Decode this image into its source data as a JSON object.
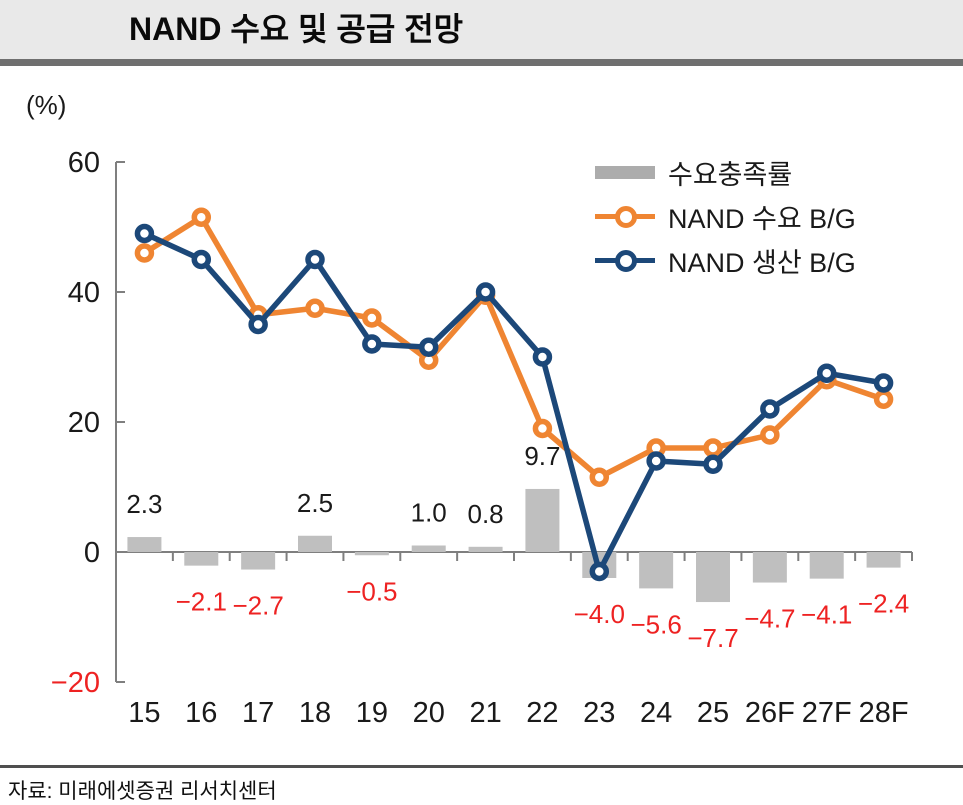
{
  "header": {
    "title": "NAND 수요 및 공급 전망"
  },
  "footer": {
    "source": "자료: 미래에셋증권 리서치센터"
  },
  "chart_data": {
    "type": "combo",
    "unit_label": "(%)",
    "categories": [
      "15",
      "16",
      "17",
      "18",
      "19",
      "20",
      "21",
      "22",
      "23",
      "24",
      "25",
      "26F",
      "27F",
      "28F"
    ],
    "yticks": [
      -20,
      0,
      20,
      40,
      60
    ],
    "ylim": [
      -20,
      60
    ],
    "grid": false,
    "legend_position": "top-right-inside",
    "axis_color": "#7f7f7f",
    "text_color": "#1a1a1a",
    "negative_color": "#ee2222",
    "series": [
      {
        "key": "fulfillment",
        "name": "수요충족률",
        "type": "bar",
        "color": "#bfbfbf",
        "values": [
          2.3,
          -2.1,
          -2.7,
          2.5,
          -0.5,
          1.0,
          0.8,
          9.7,
          -4.0,
          -5.6,
          -7.7,
          -4.7,
          -4.1,
          -2.4
        ],
        "labels": [
          "2.3",
          "−2.1",
          "−2.7",
          "2.5",
          "−0.5",
          "1.0",
          "0.8",
          "9.7",
          "−4.0",
          "−5.6",
          "−7.7",
          "−4.7",
          "−4.1",
          "−2.4"
        ]
      },
      {
        "key": "nand-demand",
        "name": "NAND 수요 B/G",
        "type": "line",
        "color": "#ef8532",
        "values": [
          46,
          51.5,
          36.5,
          37.5,
          36,
          29.5,
          39.5,
          19,
          11.5,
          16,
          16,
          18,
          26.5,
          23.5
        ]
      },
      {
        "key": "nand-production",
        "name": "NAND 생산 B/G",
        "type": "line",
        "color": "#1c4879",
        "values": [
          49,
          45,
          35,
          45,
          32,
          31.5,
          40,
          30,
          -3,
          14,
          13.5,
          22,
          27.5,
          26
        ]
      }
    ]
  }
}
